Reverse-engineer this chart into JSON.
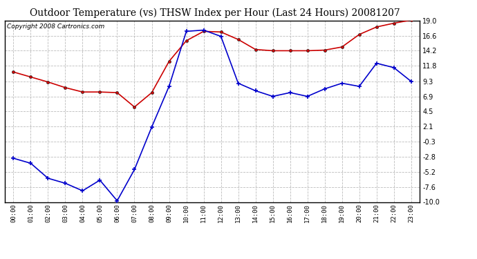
{
  "title": "Outdoor Temperature (vs) THSW Index per Hour (Last 24 Hours) 20081207",
  "copyright": "Copyright 2008 Cartronics.com",
  "hours": [
    "00:00",
    "01:00",
    "02:00",
    "03:00",
    "04:00",
    "05:00",
    "06:00",
    "07:00",
    "08:00",
    "09:00",
    "10:00",
    "11:00",
    "12:00",
    "13:00",
    "14:00",
    "15:00",
    "16:00",
    "17:00",
    "18:00",
    "19:00",
    "20:00",
    "21:00",
    "22:00",
    "23:00"
  ],
  "outdoor_temp": [
    10.8,
    10.0,
    9.2,
    8.3,
    7.6,
    7.6,
    7.5,
    5.2,
    7.5,
    12.5,
    15.8,
    17.3,
    17.2,
    16.0,
    14.4,
    14.2,
    14.2,
    14.2,
    14.3,
    14.8,
    16.8,
    18.0,
    18.6,
    19.1
  ],
  "thsw_index": [
    -3.0,
    -3.8,
    -6.2,
    -7.0,
    -8.2,
    -6.5,
    -9.8,
    -4.8,
    2.0,
    8.5,
    17.3,
    17.5,
    16.5,
    9.0,
    7.8,
    6.9,
    7.5,
    6.9,
    8.1,
    9.0,
    8.5,
    12.2,
    11.5,
    9.3
  ],
  "ylim": [
    -10.0,
    19.0
  ],
  "yticks": [
    -10.0,
    -7.6,
    -5.2,
    -2.8,
    -0.3,
    2.1,
    4.5,
    6.9,
    9.3,
    11.8,
    14.2,
    16.6,
    19.0
  ],
  "temp_color": "#cc0000",
  "thsw_color": "#0000cc",
  "bg_color": "#ffffff",
  "grid_color": "#bbbbbb",
  "title_fontsize": 10,
  "copyright_fontsize": 6.5,
  "figwidth": 6.9,
  "figheight": 3.75,
  "dpi": 100
}
